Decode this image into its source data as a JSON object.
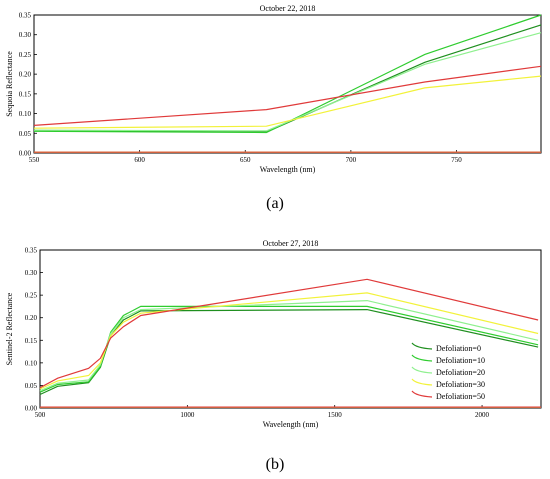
{
  "charts": [
    {
      "panel_label": "(a)",
      "chart_data": {
        "type": "line",
        "title": "October 22, 2018",
        "xlabel": "Wavelength (nm)",
        "ylabel": "Sequoia Reflectance",
        "xlim": [
          550,
          790
        ],
        "ylim": [
          0,
          0.35
        ],
        "xticks": [
          550,
          600,
          650,
          700,
          750
        ],
        "yticks": [
          0.0,
          0.05,
          0.1,
          0.15,
          0.2,
          0.25,
          0.3,
          0.35
        ],
        "series": [
          {
            "name": "Defoliation=0",
            "color": "#1f8f1f",
            "x": [
              550,
              660,
              735,
              790
            ],
            "y": [
              0.057,
              0.053,
              0.23,
              0.325
            ]
          },
          {
            "name": "Defoliation=10",
            "color": "#2fcc2f",
            "x": [
              550,
              660,
              735,
              790
            ],
            "y": [
              0.055,
              0.052,
              0.25,
              0.35
            ]
          },
          {
            "name": "Defoliation=20",
            "color": "#8ff08f",
            "x": [
              550,
              660,
              735,
              790
            ],
            "y": [
              0.058,
              0.056,
              0.225,
              0.305
            ]
          },
          {
            "name": "Defoliation=30",
            "color": "#f2f23a",
            "x": [
              550,
              660,
              735,
              790
            ],
            "y": [
              0.063,
              0.068,
              0.165,
              0.195
            ]
          },
          {
            "name": "Defoliation=50",
            "color": "#e03a3a",
            "x": [
              550,
              660,
              735,
              790
            ],
            "y": [
              0.07,
              0.11,
              0.18,
              0.22
            ]
          }
        ]
      }
    },
    {
      "panel_label": "(b)",
      "chart_data": {
        "type": "line",
        "title": "October 27, 2018",
        "xlabel": "Wavelength (nm)",
        "ylabel": "Sentinel-2 Reflectance",
        "xlim": [
          500,
          2200
        ],
        "ylim": [
          0,
          0.35
        ],
        "xticks": [
          500,
          1000,
          1500,
          2000
        ],
        "yticks": [
          0.0,
          0.05,
          0.1,
          0.15,
          0.2,
          0.25,
          0.3,
          0.35
        ],
        "legend_position": "bottom-right",
        "series": [
          {
            "name": "Defoliation=0",
            "color": "#1f8f1f",
            "x": [
              500,
              560,
              665,
              705,
              740,
              783,
              842,
              1610,
              2190
            ],
            "y": [
              0.03,
              0.048,
              0.056,
              0.09,
              0.16,
              0.195,
              0.215,
              0.218,
              0.135
            ]
          },
          {
            "name": "Defoliation=10",
            "color": "#2fcc2f",
            "x": [
              500,
              560,
              665,
              705,
              740,
              783,
              842,
              1610,
              2190
            ],
            "y": [
              0.035,
              0.052,
              0.058,
              0.092,
              0.168,
              0.205,
              0.225,
              0.225,
              0.14
            ]
          },
          {
            "name": "Defoliation=20",
            "color": "#8ff08f",
            "x": [
              500,
              560,
              665,
              705,
              740,
              783,
              842,
              1610,
              2190
            ],
            "y": [
              0.038,
              0.055,
              0.062,
              0.096,
              0.165,
              0.2,
              0.218,
              0.238,
              0.15
            ]
          },
          {
            "name": "Defoliation=30",
            "color": "#f2f23a",
            "x": [
              500,
              560,
              665,
              705,
              740,
              783,
              842,
              1610,
              2190
            ],
            "y": [
              0.042,
              0.06,
              0.072,
              0.1,
              0.16,
              0.19,
              0.21,
              0.255,
              0.165
            ]
          },
          {
            "name": "Defoliation=50",
            "color": "#e03a3a",
            "x": [
              500,
              560,
              665,
              705,
              740,
              783,
              842,
              1610,
              2190
            ],
            "y": [
              0.045,
              0.066,
              0.088,
              0.11,
              0.155,
              0.18,
              0.205,
              0.285,
              0.195
            ]
          }
        ]
      }
    }
  ]
}
